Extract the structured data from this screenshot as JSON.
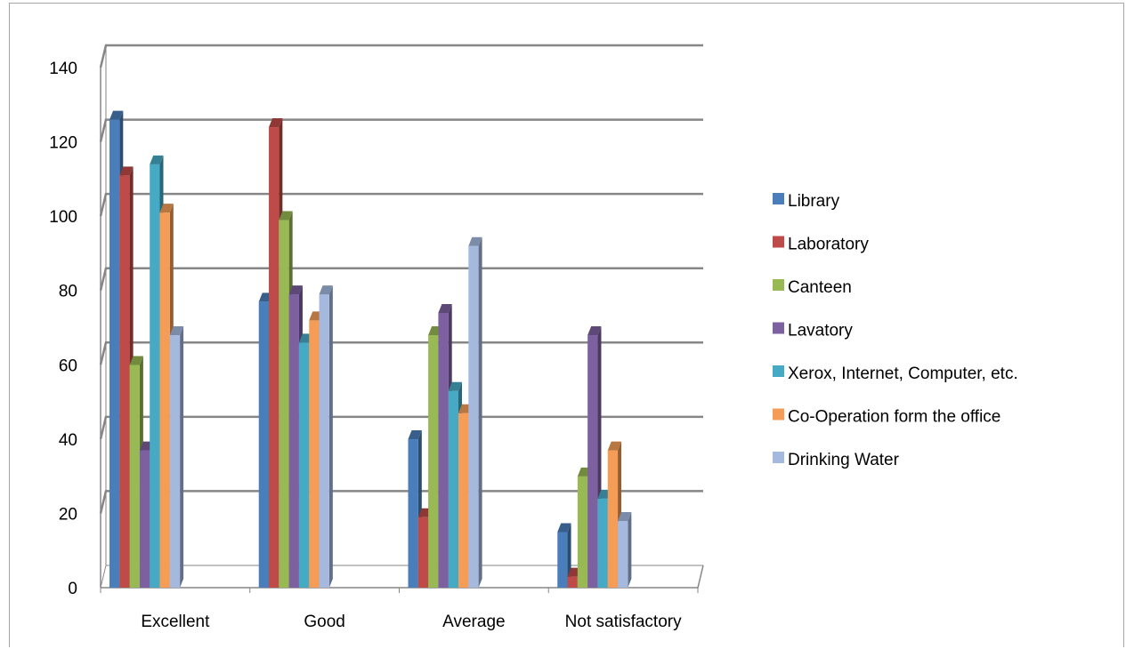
{
  "chart_data": {
    "type": "bar",
    "categories": [
      "Excellent",
      "Good",
      "Average",
      "Not satisfactory"
    ],
    "series": [
      {
        "name": "Library",
        "values": [
          125,
          76,
          39,
          14
        ],
        "color": "#4a7ebb"
      },
      {
        "name": "Laboratory",
        "values": [
          110,
          123,
          18,
          2
        ],
        "color": "#be4b48"
      },
      {
        "name": "Canteen",
        "values": [
          59,
          98,
          67,
          29
        ],
        "color": "#98b954"
      },
      {
        "name": "Lavatory",
        "values": [
          36,
          78,
          73,
          67
        ],
        "color": "#7d60a0"
      },
      {
        "name": "Xerox, Internet, Computer, etc.",
        "values": [
          113,
          65,
          52,
          23
        ],
        "color": "#46aac5"
      },
      {
        "name": "Co-Operation form the office",
        "values": [
          100,
          71,
          46,
          36
        ],
        "color": "#f59d56"
      },
      {
        "name": "Drinking Water",
        "values": [
          67,
          78,
          91,
          17
        ],
        "color": "#a5b9df"
      }
    ],
    "y_ticks": [
      "0",
      "20",
      "40",
      "60",
      "80",
      "100",
      "120",
      "140"
    ],
    "ylim": [
      0,
      140
    ],
    "grid": true,
    "legend": "right",
    "title": "",
    "xlabel": "",
    "ylabel": ""
  }
}
